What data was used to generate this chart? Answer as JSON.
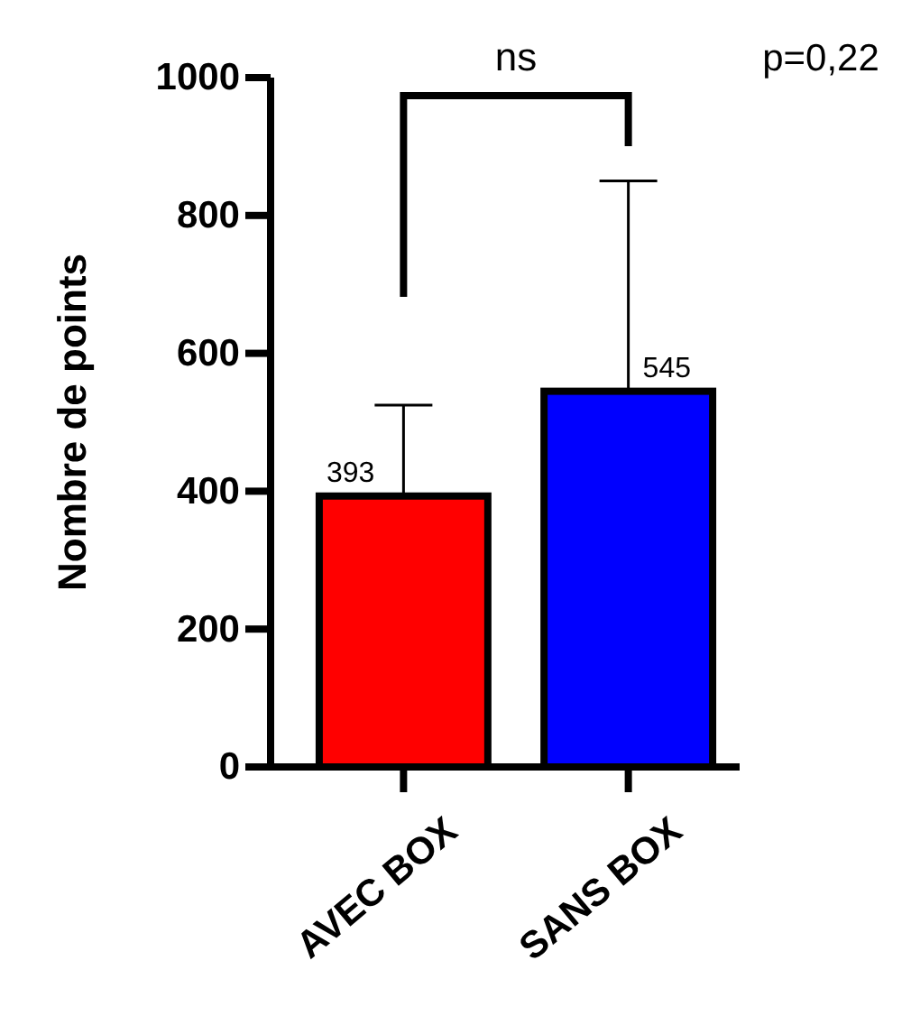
{
  "chart_data": {
    "type": "bar",
    "ylabel": "Nombre de points",
    "categories": [
      "AVEC BOX",
      "SANS BOX"
    ],
    "values": [
      393,
      545
    ],
    "colors": [
      "#ff0000",
      "#0000ff"
    ],
    "errors": [
      [
        393,
        525
      ],
      [
        545,
        850
      ]
    ],
    "ylim": [
      0,
      1000
    ],
    "yticks": [
      0,
      200,
      400,
      600,
      800,
      1000
    ],
    "grid": false,
    "data_labels": true,
    "annotations": [
      "ns",
      "p=0,22"
    ]
  }
}
